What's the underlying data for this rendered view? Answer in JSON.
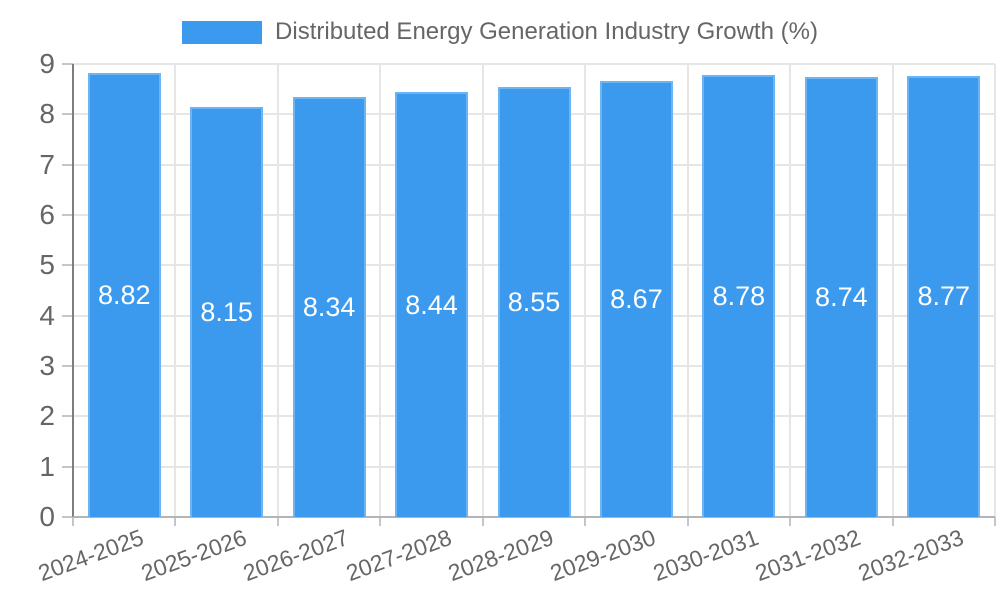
{
  "chart_data": {
    "type": "bar",
    "title": "Distributed Energy Generation Industry Growth (%)",
    "legend": {
      "label": "Distributed Energy Generation Industry Growth (%)",
      "position": "top"
    },
    "categories": [
      "2024-2025",
      "2025-2026",
      "2026-2027",
      "2027-2028",
      "2028-2029",
      "2029-2030",
      "2030-2031",
      "2031-2032",
      "2032-2033"
    ],
    "values": [
      8.82,
      8.15,
      8.34,
      8.44,
      8.55,
      8.67,
      8.78,
      8.74,
      8.77
    ],
    "xlabel": "",
    "ylabel": "",
    "ylim": [
      0,
      9
    ],
    "yticks": [
      0,
      1,
      2,
      3,
      4,
      5,
      6,
      7,
      8,
      9
    ],
    "grid": true,
    "value_labels_shown": true,
    "x_label_rotation_deg": -20,
    "colors": {
      "bar_fill": "#3b99ee",
      "bar_border": "#6db4f3",
      "grid_line": "#e6e6e6",
      "y_axis_line": "#7e7e7e",
      "x_axis_line": "#b4b4b4",
      "tick_mark": "#c6c6c6",
      "tick_label": "#666666",
      "value_label": "#ffffff",
      "background": "#ffffff"
    }
  }
}
